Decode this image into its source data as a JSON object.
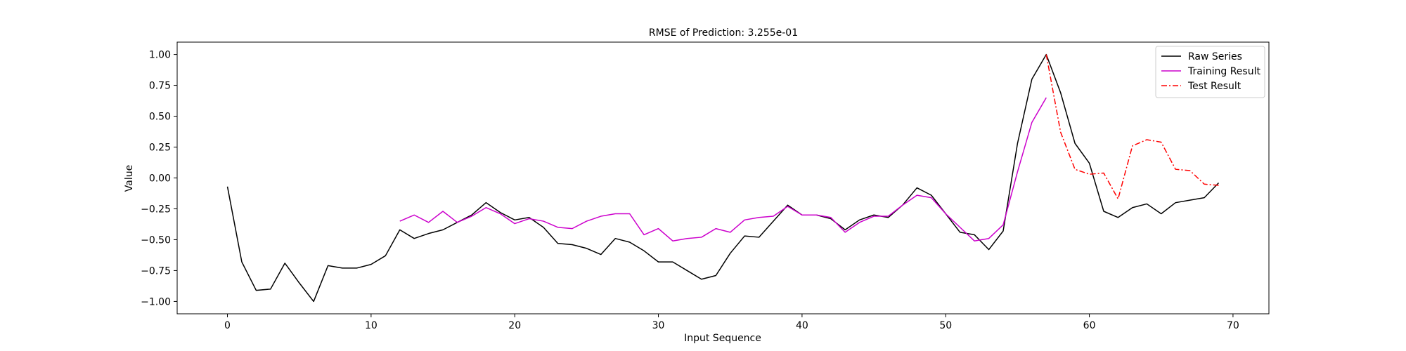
{
  "chart_data": {
    "type": "line",
    "title": "RMSE of Prediction: 3.255e-01",
    "xlabel": "Input Sequence",
    "ylabel": "Value",
    "xlim": [
      -3.5,
      72.5
    ],
    "ylim": [
      -1.1,
      1.1
    ],
    "xticks": [
      0,
      10,
      20,
      30,
      40,
      50,
      60,
      70
    ],
    "xtick_labels": [
      "0",
      "10",
      "20",
      "30",
      "40",
      "50",
      "60",
      "70"
    ],
    "yticks": [
      1.0,
      0.75,
      0.5,
      0.25,
      0.0,
      -0.25,
      -0.5,
      -0.75,
      -1.0
    ],
    "ytick_labels": [
      "1.00",
      "0.75",
      "0.50",
      "0.25",
      "0.00",
      "−0.25",
      "−0.50",
      "−0.75",
      "−1.00"
    ],
    "grid": false,
    "legend_position": "top-right",
    "series": [
      {
        "name": "Raw Series",
        "color": "#000000",
        "style": "solid",
        "x": [
          0,
          1,
          2,
          3,
          4,
          5,
          6,
          7,
          8,
          9,
          10,
          11,
          12,
          13,
          14,
          15,
          16,
          17,
          18,
          19,
          20,
          21,
          22,
          23,
          24,
          25,
          26,
          27,
          28,
          29,
          30,
          31,
          32,
          33,
          34,
          35,
          36,
          37,
          38,
          39,
          40,
          41,
          42,
          43,
          44,
          45,
          46,
          47,
          48,
          49,
          50,
          51,
          52,
          53,
          54,
          55,
          56,
          57,
          58,
          59,
          60,
          61,
          62,
          63,
          64,
          65,
          66,
          67,
          68,
          69
        ],
        "values": [
          -0.07,
          -0.68,
          -0.91,
          -0.9,
          -0.69,
          -0.85,
          -1.0,
          -0.71,
          -0.73,
          -0.73,
          -0.7,
          -0.63,
          -0.42,
          -0.49,
          -0.45,
          -0.42,
          -0.36,
          -0.3,
          -0.2,
          -0.28,
          -0.34,
          -0.32,
          -0.4,
          -0.53,
          -0.54,
          -0.57,
          -0.62,
          -0.49,
          -0.52,
          -0.59,
          -0.68,
          -0.68,
          -0.75,
          -0.82,
          -0.79,
          -0.61,
          -0.47,
          -0.48,
          -0.35,
          -0.22,
          -0.3,
          -0.3,
          -0.33,
          -0.42,
          -0.34,
          -0.3,
          -0.32,
          -0.22,
          -0.08,
          -0.14,
          -0.29,
          -0.44,
          -0.46,
          -0.58,
          -0.43,
          0.28,
          0.8,
          1.0,
          0.69,
          0.28,
          0.12,
          -0.27,
          -0.32,
          -0.24,
          -0.21,
          -0.29,
          -0.2,
          -0.18,
          -0.16,
          -0.04
        ]
      },
      {
        "name": "Training Result",
        "color": "#cc00cc",
        "style": "solid",
        "x": [
          12,
          13,
          14,
          15,
          16,
          17,
          18,
          19,
          20,
          21,
          22,
          23,
          24,
          25,
          26,
          27,
          28,
          29,
          30,
          31,
          32,
          33,
          34,
          35,
          36,
          37,
          38,
          39,
          40,
          41,
          42,
          43,
          44,
          45,
          46,
          47,
          48,
          49,
          50,
          51,
          52,
          53,
          54,
          55,
          56,
          57
        ],
        "values": [
          -0.35,
          -0.3,
          -0.36,
          -0.27,
          -0.36,
          -0.31,
          -0.24,
          -0.29,
          -0.37,
          -0.33,
          -0.35,
          -0.4,
          -0.41,
          -0.35,
          -0.31,
          -0.29,
          -0.29,
          -0.46,
          -0.41,
          -0.51,
          -0.49,
          -0.48,
          -0.41,
          -0.44,
          -0.34,
          -0.32,
          -0.31,
          -0.23,
          -0.3,
          -0.3,
          -0.32,
          -0.44,
          -0.36,
          -0.31,
          -0.31,
          -0.22,
          -0.14,
          -0.16,
          -0.29,
          -0.4,
          -0.51,
          -0.49,
          -0.38,
          0.05,
          0.45,
          0.65
        ]
      },
      {
        "name": "Test Result",
        "color": "#ff0000",
        "style": "dashdot",
        "x": [
          57,
          58,
          59,
          60,
          61,
          62,
          63,
          64,
          65,
          66,
          67,
          68,
          69
        ],
        "values": [
          1.0,
          0.37,
          0.07,
          0.03,
          0.04,
          -0.17,
          0.26,
          0.31,
          0.29,
          0.07,
          0.06,
          -0.05,
          -0.06
        ]
      }
    ]
  }
}
